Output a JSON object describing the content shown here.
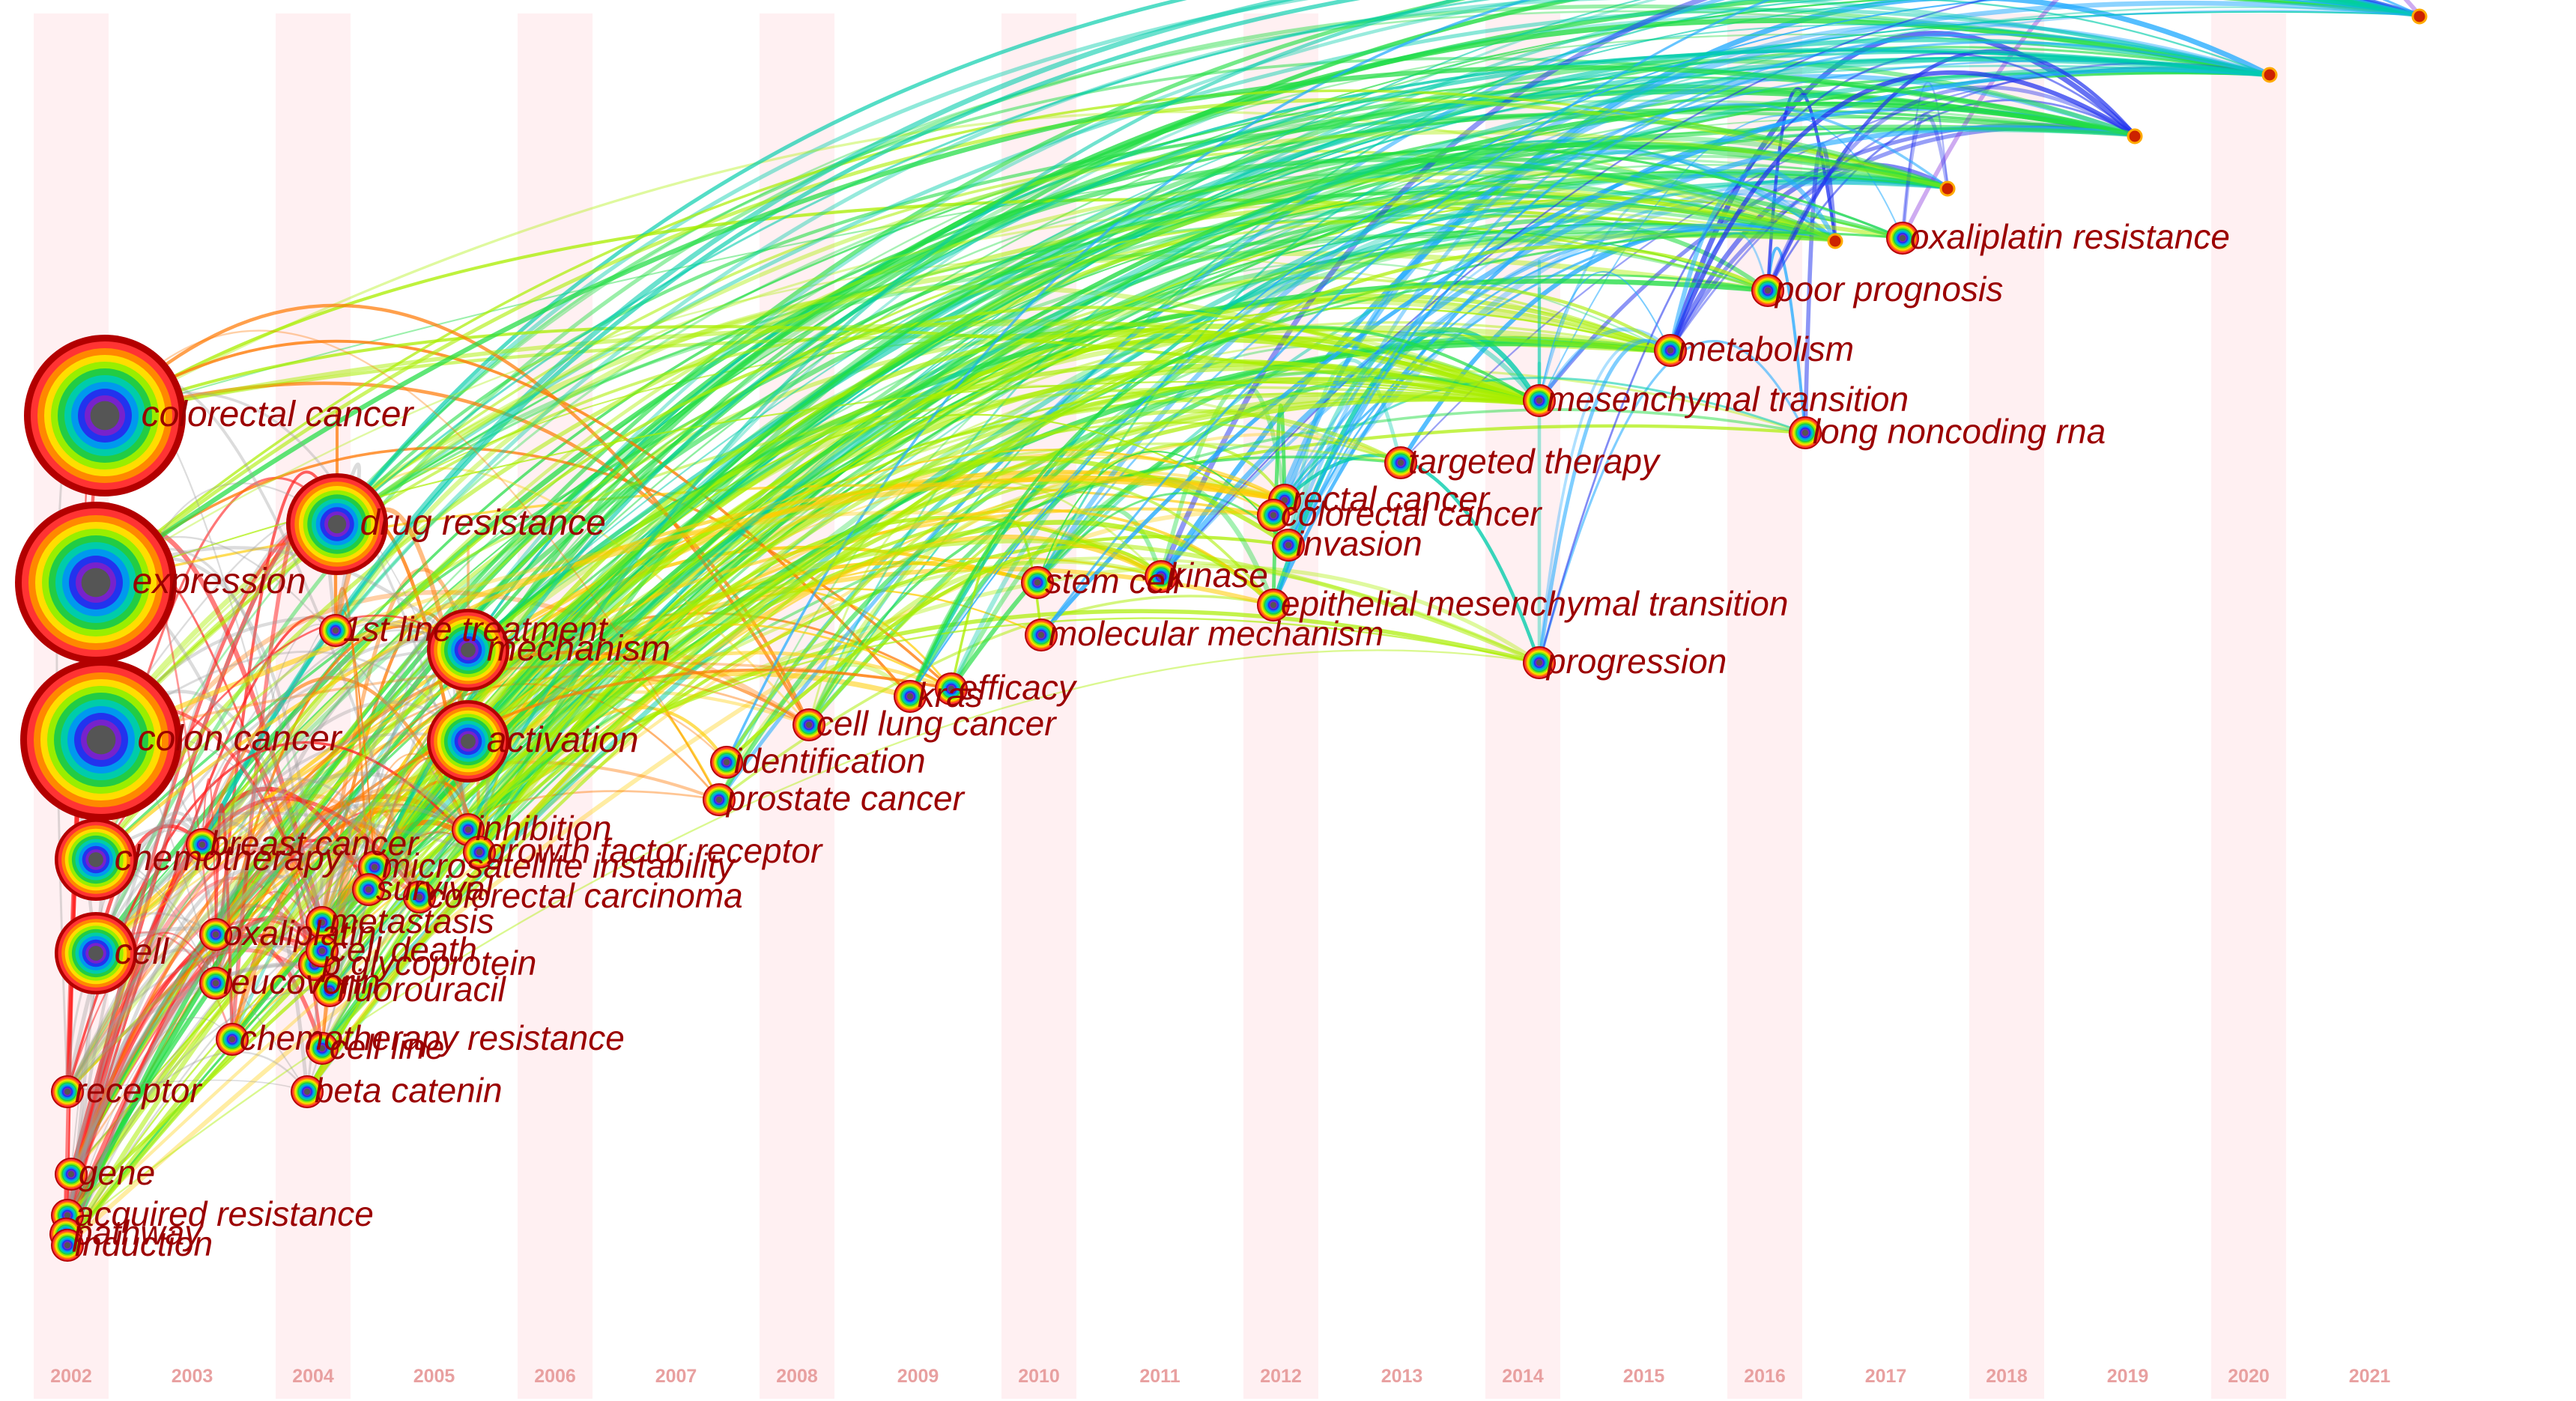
{
  "years": [
    "2002",
    "2003",
    "2004",
    "2005",
    "2006",
    "2007",
    "2008",
    "2009",
    "2010",
    "2011",
    "2012",
    "2013",
    "2014",
    "2015",
    "2016",
    "2017",
    "2018",
    "2019",
    "2020",
    "2021"
  ],
  "keywords": [
    {
      "label": "colorectal cancer",
      "year": "2002",
      "size": "xl"
    },
    {
      "label": "expression",
      "year": "2002",
      "size": "xl"
    },
    {
      "label": "colon cancer",
      "year": "2002",
      "size": "xl"
    },
    {
      "label": "chemotherapy",
      "year": "2002",
      "size": "m"
    },
    {
      "label": "cell",
      "year": "2002",
      "size": "m"
    },
    {
      "label": "gene",
      "year": "2002",
      "size": "s"
    },
    {
      "label": "acquired resistance",
      "year": "2002",
      "size": "s"
    },
    {
      "label": "pathway",
      "year": "2002",
      "size": "s"
    },
    {
      "label": "induction",
      "year": "2002",
      "size": "s"
    },
    {
      "label": "receptor",
      "year": "2002",
      "size": "s"
    },
    {
      "label": "beta catenin",
      "year": "2003",
      "size": "s"
    },
    {
      "label": "drug resistance",
      "year": "2004",
      "size": "l"
    },
    {
      "label": "1st line treatment",
      "year": "2004",
      "size": "s"
    },
    {
      "label": "oxaliplatin",
      "year": "2003",
      "size": "s"
    },
    {
      "label": "leucovorin",
      "year": "2003",
      "size": "s"
    },
    {
      "label": "breast cancer",
      "year": "2003",
      "size": "s"
    },
    {
      "label": "mechanism",
      "year": "2005",
      "size": "m"
    },
    {
      "label": "activation",
      "year": "2005",
      "size": "m"
    },
    {
      "label": "inhibition",
      "year": "2005",
      "size": "s"
    },
    {
      "label": "microsatellite instability",
      "year": "2004",
      "size": "s"
    },
    {
      "label": "survival",
      "year": "2004",
      "size": "s"
    },
    {
      "label": "metastasis",
      "year": "2004",
      "size": "s"
    },
    {
      "label": "p glycoprotein",
      "year": "2004",
      "size": "s"
    },
    {
      "label": "fluorouracil",
      "year": "2004",
      "size": "s"
    },
    {
      "label": "cell death",
      "year": "2004",
      "size": "s"
    },
    {
      "label": "chemotherapy resistance",
      "year": "2003",
      "size": "s"
    },
    {
      "label": "cell line",
      "year": "2004",
      "size": "s"
    },
    {
      "label": "growth factor receptor",
      "year": "2005",
      "size": "s"
    },
    {
      "label": "colorectal carcinoma",
      "year": "2005",
      "size": "s"
    },
    {
      "label": "identification",
      "year": "2007",
      "size": "s"
    },
    {
      "label": "prostate cancer",
      "year": "2007",
      "size": "s"
    },
    {
      "label": "cell lung cancer",
      "year": "2008",
      "size": "s"
    },
    {
      "label": "kras",
      "year": "2009",
      "size": "s"
    },
    {
      "label": "efficacy",
      "year": "2009",
      "size": "s"
    },
    {
      "label": "stem cell",
      "year": "2010",
      "size": "s"
    },
    {
      "label": "kinase",
      "year": "2011",
      "size": "s"
    },
    {
      "label": "molecular mechanism",
      "year": "2010",
      "size": "s"
    },
    {
      "label": "rectal cancer",
      "year": "2012",
      "size": "s"
    },
    {
      "label": "invasion",
      "year": "2012",
      "size": "s"
    },
    {
      "label": "colorectal cancer",
      "year": "2012",
      "size": "s"
    },
    {
      "label": "targeted therapy",
      "year": "2013",
      "size": "s"
    },
    {
      "label": "epithelial mesenchymal transition",
      "year": "2012",
      "size": "s"
    },
    {
      "label": "progression",
      "year": "2014",
      "size": "s"
    },
    {
      "label": "mesenchymal transition",
      "year": "2014",
      "size": "s"
    },
    {
      "label": "long noncoding rna",
      "year": "2016",
      "size": "s"
    },
    {
      "label": "metabolism",
      "year": "2015",
      "size": "s"
    },
    {
      "label": "poor prognosis",
      "year": "2016",
      "size": "s"
    },
    {
      "label": "oxaliplatin resistance",
      "year": "2017",
      "size": "s"
    }
  ],
  "colors": {
    "ring_sequence": [
      "#b30000",
      "#ff3333",
      "#ff8800",
      "#ffdd00",
      "#99ee00",
      "#22cc44",
      "#00ccaa",
      "#0099ee",
      "#2233ee",
      "#7722cc",
      "#888888"
    ],
    "label_color": "#9b0000",
    "year_band": "#fff0f2",
    "year_text": "#e8a0a0"
  }
}
